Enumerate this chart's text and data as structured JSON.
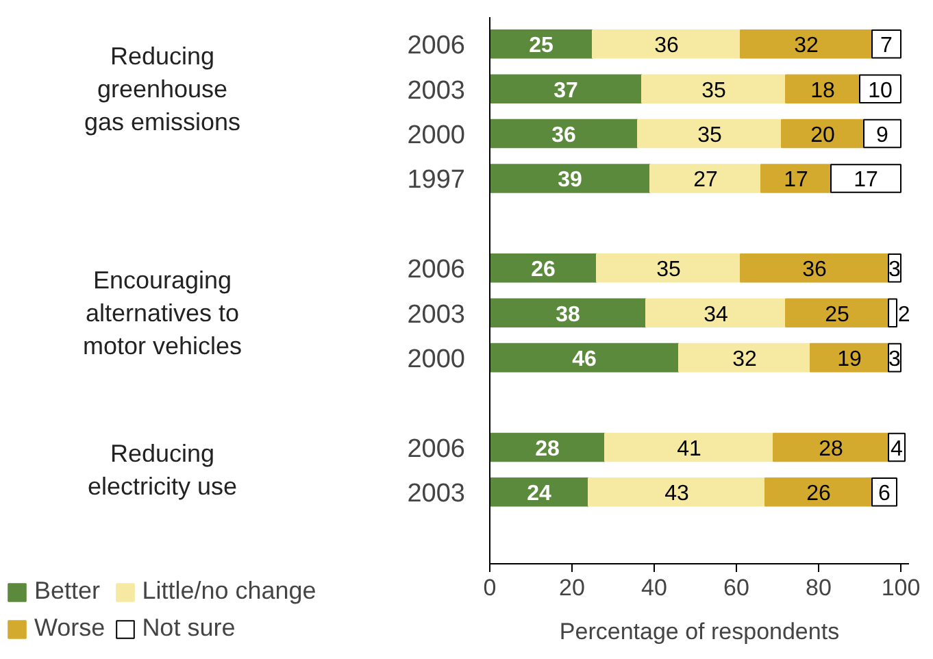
{
  "chart_data": {
    "type": "bar",
    "orientation": "horizontal",
    "stacked": true,
    "data_labels": true,
    "legend": "bottom left",
    "grid": false,
    "xlabel": "Percentage of respondents",
    "xlim": [
      0,
      102
    ],
    "xticks": [
      0,
      20,
      40,
      60,
      80,
      100
    ],
    "categories": [
      "2006",
      "2003",
      "2000",
      "1997",
      null,
      "2006",
      "2003",
      "2000",
      null,
      "2006",
      "2003"
    ],
    "annotations": [
      "Reducing\ngreenhouse\ngas emissions",
      "Encouraging\nalternatives to\nmotor vehicles",
      "Reducing\nelectricity use"
    ],
    "series": [
      {
        "name": "Better",
        "color": "#5b8a3c",
        "values": [
          25,
          37,
          36,
          39,
          null,
          26,
          38,
          46,
          null,
          28,
          24
        ]
      },
      {
        "name": "Little/no change",
        "color": "#f6e9a2",
        "values": [
          36,
          35,
          35,
          27,
          null,
          35,
          34,
          32,
          null,
          41,
          43
        ]
      },
      {
        "name": "Worse",
        "color": "#d4aa2e",
        "values": [
          32,
          18,
          20,
          17,
          null,
          36,
          25,
          19,
          null,
          28,
          26
        ]
      },
      {
        "name": "Not sure",
        "color": "#ffffff",
        "values": [
          7,
          10,
          9,
          17,
          null,
          3,
          2,
          3,
          null,
          4,
          6
        ]
      }
    ]
  }
}
